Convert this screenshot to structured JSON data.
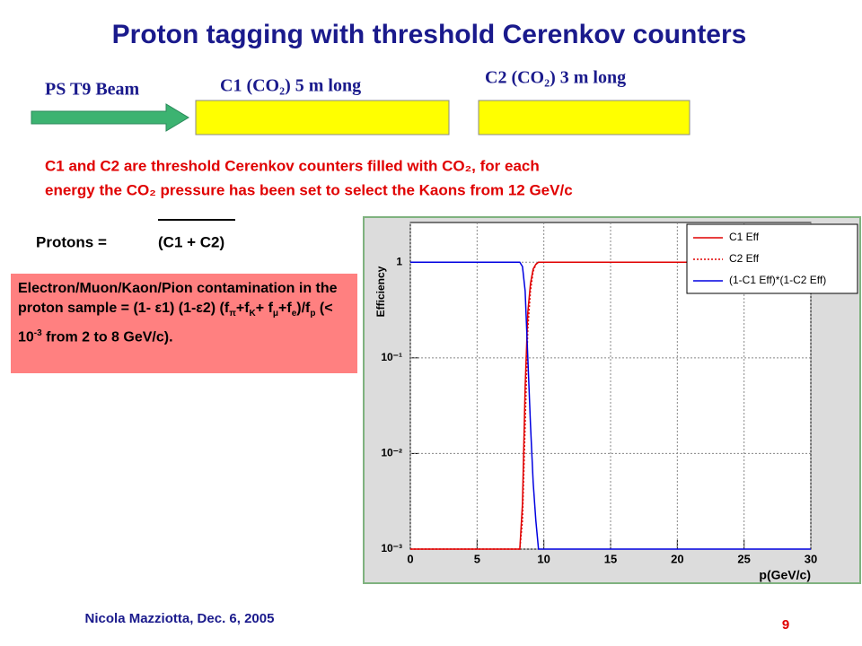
{
  "slide": {
    "title": "Proton tagging with threshold Cerenkov counters",
    "beam_label": "PS T9 Beam",
    "c1_label": "C1 (CO₂) 5 m long",
    "c2_label": "C2 (CO₂) 3 m long",
    "note_lines": [
      "C1 and C2 are threshold Cerenkov counters filled with CO₂,  for each",
      "energy the CO₂ pressure has been set to select the Kaons from 12 GeV/c"
    ],
    "protons_label": "Protons  = ",
    "protons_formula": "(C1 + C2)",
    "contamination": [
      "Electron/Muon/Kaon/Pion contamination in the proton sample = (1- ε1) (1-ε2) (f",
      "π",
      "+f",
      "K",
      "+ f",
      "μ",
      "+f",
      "e",
      ")/f",
      "p",
      " (< 10",
      "-3",
      " from 2 to 8 GeV/c)."
    ],
    "footer": "Nicola Mazziotta, Dec. 6, 2005",
    "page_number": "9"
  },
  "chart_data": {
    "type": "line",
    "ylabel": "Efficiency",
    "xlabel": "p(GeV/c)",
    "log_y": true,
    "grid": true,
    "legend": "top-right",
    "x": [
      0,
      8,
      8.2,
      8.4,
      8.6,
      8.8,
      9.0,
      9.2,
      9.4,
      9.6,
      10,
      30
    ],
    "series": [
      {
        "name": "C1 Eff",
        "color": "#e00000",
        "style": "solid",
        "values": [
          0.001,
          0.001,
          0.001,
          0.003,
          0.05,
          0.3,
          0.6,
          0.85,
          0.95,
          1,
          1,
          1
        ]
      },
      {
        "name": "C2 Eff",
        "color": "#e00000",
        "style": "dotted",
        "values": [
          0.001,
          0.001,
          0.001,
          0.002,
          0.02,
          0.2,
          0.5,
          0.8,
          0.95,
          1,
          1,
          1
        ]
      },
      {
        "name": "(1-C1 Eff)*(1-C2 Eff)",
        "color": "#0000e0",
        "style": "solid",
        "values": [
          1,
          1,
          1,
          0.9,
          0.5,
          0.1,
          0.02,
          0.005,
          0.002,
          0.001,
          0.001,
          0.001
        ]
      }
    ],
    "xlim": [
      0,
      30
    ],
    "xticks": [
      0,
      5,
      10,
      15,
      20,
      25,
      30
    ],
    "ylim": [
      0.001,
      2.6
    ],
    "yticks": [
      {
        "value": 0.001,
        "label": "10⁻³"
      },
      {
        "value": 0.01,
        "label": "10⁻²"
      },
      {
        "value": 0.1,
        "label": "10⁻¹"
      },
      1
    ]
  }
}
